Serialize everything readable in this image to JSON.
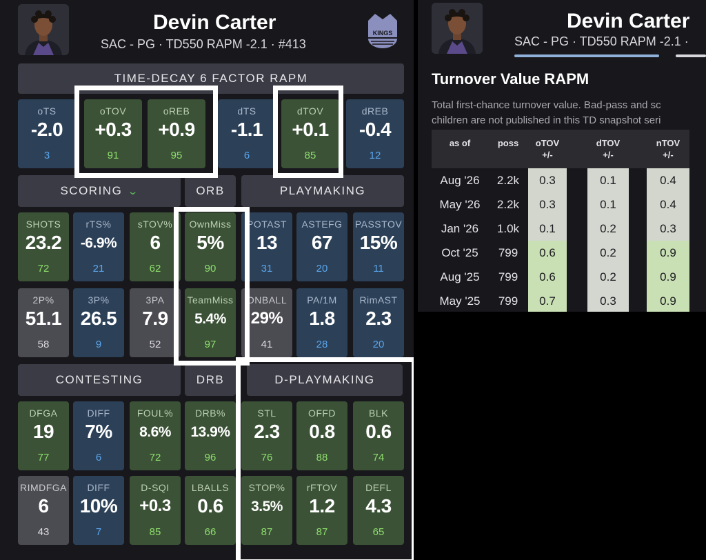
{
  "player": {
    "name": "Devin Carter",
    "subtitle": "SAC - PG · TD550 RAPM -2.1 · #413",
    "subtitle_right": "SAC - PG · TD550 RAPM -2.1 ·"
  },
  "team_logo": {
    "text": "SACRAMENTO KINGS",
    "color": "#8a8fbd"
  },
  "colors": {
    "good": "#3b5236",
    "bad": "#2c4158",
    "neutral": "#4b4b52",
    "good_pct": "#8ede6d",
    "bad_pct": "#5aa6ee",
    "highlight_frame": "#ffffff"
  },
  "sections": {
    "rapm": "TIME-DECAY 6 FACTOR RAPM",
    "scoring": "SCORING",
    "orb": "ORB",
    "playmaking": "PLAYMAKING",
    "contesting": "CONTESTING",
    "drb": "DRB",
    "d_playmaking": "D-PLAYMAKING"
  },
  "rapm": [
    {
      "label": "oTS",
      "value": "-2.0",
      "pct": "3",
      "tone": "blue"
    },
    {
      "label": "oTOV",
      "value": "+0.3",
      "pct": "91",
      "tone": "green"
    },
    {
      "label": "oREB",
      "value": "+0.9",
      "pct": "95",
      "tone": "green"
    },
    {
      "label": "dTS",
      "value": "-1.1",
      "pct": "6",
      "tone": "blue"
    },
    {
      "label": "dTOV",
      "value": "+0.1",
      "pct": "85",
      "tone": "green"
    },
    {
      "label": "dREB",
      "value": "-0.4",
      "pct": "12",
      "tone": "blue"
    }
  ],
  "offense_row1": [
    {
      "label": "SHOTS",
      "value": "23.2",
      "pct": "72",
      "tone": "green"
    },
    {
      "label": "rTS%",
      "value": "-6.9%",
      "pct": "21",
      "tone": "blue",
      "size": "small"
    },
    {
      "label": "sTOV%",
      "value": "6",
      "pct": "62",
      "tone": "green"
    },
    {
      "label": "OwnMiss",
      "value": "5%",
      "pct": "90",
      "tone": "green"
    },
    {
      "label": "POTAST",
      "value": "13",
      "pct": "31",
      "tone": "blue"
    },
    {
      "label": "ASTEFG",
      "value": "67",
      "pct": "20",
      "tone": "blue"
    },
    {
      "label": "PASSTOV",
      "value": "15%",
      "pct": "11",
      "tone": "blue"
    }
  ],
  "offense_row2": [
    {
      "label": "2P%",
      "value": "51.1",
      "pct": "58",
      "tone": "gray"
    },
    {
      "label": "3P%",
      "value": "26.5",
      "pct": "9",
      "tone": "blue"
    },
    {
      "label": "3PA",
      "value": "7.9",
      "pct": "52",
      "tone": "gray"
    },
    {
      "label": "TeamMiss",
      "value": "5.4%",
      "pct": "97",
      "tone": "green",
      "size": "small"
    },
    {
      "label": "ONBALL",
      "value": "29%",
      "pct": "41",
      "tone": "gray",
      "size": "mid"
    },
    {
      "label": "PA/1M",
      "value": "1.8",
      "pct": "28",
      "tone": "blue"
    },
    {
      "label": "RimAST",
      "value": "2.3",
      "pct": "20",
      "tone": "blue"
    }
  ],
  "defense_row1": [
    {
      "label": "DFGA",
      "value": "19",
      "pct": "77",
      "tone": "green"
    },
    {
      "label": "DIFF",
      "value": "7%",
      "pct": "6",
      "tone": "blue"
    },
    {
      "label": "FOUL%",
      "value": "8.6%",
      "pct": "72",
      "tone": "green",
      "size": "small"
    },
    {
      "label": "DRB%",
      "value": "13.9%",
      "pct": "96",
      "tone": "green",
      "size": "small"
    },
    {
      "label": "STL",
      "value": "2.3",
      "pct": "76",
      "tone": "green"
    },
    {
      "label": "OFFD",
      "value": "0.8",
      "pct": "88",
      "tone": "green"
    },
    {
      "label": "BLK",
      "value": "0.6",
      "pct": "74",
      "tone": "green"
    }
  ],
  "defense_row2": [
    {
      "label": "RIMDFGA",
      "value": "6",
      "pct": "43",
      "tone": "gray"
    },
    {
      "label": "DIFF",
      "value": "10%",
      "pct": "7",
      "tone": "blue"
    },
    {
      "label": "D-SQI",
      "value": "+0.3",
      "pct": "85",
      "tone": "green",
      "size": "mid"
    },
    {
      "label": "LBALLS",
      "value": "0.6",
      "pct": "66",
      "tone": "green"
    },
    {
      "label": "STOP%",
      "value": "3.5%",
      "pct": "87",
      "tone": "green",
      "size": "small"
    },
    {
      "label": "rFTOV",
      "value": "1.2",
      "pct": "87",
      "tone": "green"
    },
    {
      "label": "DEFL",
      "value": "4.3",
      "pct": "65",
      "tone": "green"
    }
  ],
  "turnover": {
    "title": "Turnover Value RAPM",
    "desc_line1": "Total first-chance turnover value. Bad-pass and sc",
    "desc_line2": "children are not published in this TD snapshot seri",
    "columns": [
      "as of",
      "poss",
      "oTOV +/-",
      "dTOV +/-",
      "nTOV +/-"
    ],
    "rows": [
      {
        "as_of": "Aug '26",
        "poss": "2.2k",
        "otov": "0.3",
        "dtov": "0.1",
        "ntov": "0.4"
      },
      {
        "as_of": "May '26",
        "poss": "2.2k",
        "otov": "0.3",
        "dtov": "0.1",
        "ntov": "0.4"
      },
      {
        "as_of": "Jan '26",
        "poss": "1.0k",
        "otov": "0.1",
        "dtov": "0.2",
        "ntov": "0.3"
      },
      {
        "as_of": "Oct '25",
        "poss": "799",
        "otov": "0.6",
        "dtov": "0.2",
        "ntov": "0.9"
      },
      {
        "as_of": "Aug '25",
        "poss": "799",
        "otov": "0.6",
        "dtov": "0.2",
        "ntov": "0.9"
      },
      {
        "as_of": "May '25",
        "poss": "799",
        "otov": "0.7",
        "dtov": "0.3",
        "ntov": "0.9"
      }
    ]
  }
}
